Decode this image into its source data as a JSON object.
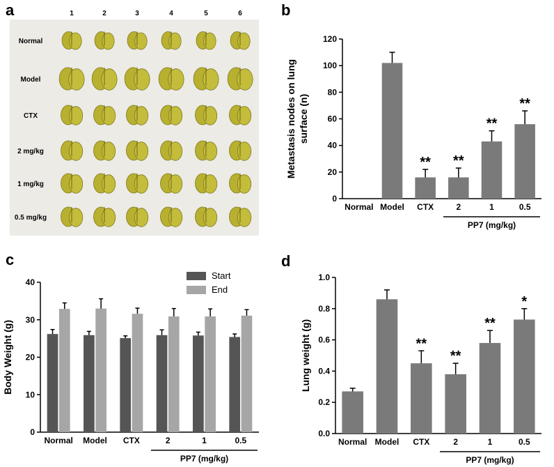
{
  "panels": {
    "a": {
      "letter": "a",
      "columns": [
        "1",
        "2",
        "3",
        "4",
        "5",
        "6"
      ],
      "rows": [
        "Normal",
        "Model",
        "CTX",
        "2 mg/kg",
        "1 mg/kg",
        "0.5 mg/kg"
      ],
      "photo_bg": "#ecebe6",
      "lung_color": "#b8b02f"
    },
    "b": {
      "letter": "b"
    },
    "c": {
      "letter": "c"
    },
    "d": {
      "letter": "d"
    }
  },
  "chart_data": [
    {
      "panel": "b",
      "type": "bar",
      "ylabel": "Metastasis nodes on lung surface (n)",
      "ylabel_lines": [
        "Metastasis nodes on lung",
        "surface (n)"
      ],
      "ylim": [
        0,
        120
      ],
      "yticks": [
        0,
        20,
        40,
        60,
        80,
        100,
        120
      ],
      "categories": [
        "Normal",
        "Model",
        "CTX",
        "2",
        "1",
        "0.5"
      ],
      "values": [
        0,
        102,
        16,
        16,
        43,
        56
      ],
      "errors": [
        0,
        8,
        6,
        7,
        8,
        10
      ],
      "significance": [
        "",
        "",
        "**",
        "**",
        "**",
        "**"
      ],
      "group_label": "PP7 (mg/kg)",
      "bar_color": "#7a7a7a"
    },
    {
      "panel": "c",
      "type": "bar",
      "ylabel": "Body Weight (g)",
      "ylim": [
        0,
        40
      ],
      "yticks": [
        0,
        10,
        20,
        30,
        40
      ],
      "categories": [
        "Normal",
        "Model",
        "CTX",
        "2",
        "1",
        "0.5"
      ],
      "series": [
        {
          "name": "Start",
          "values": [
            26.2,
            25.9,
            25.1,
            25.9,
            25.8,
            25.4
          ],
          "errors": [
            1.2,
            1.0,
            0.6,
            1.4,
            0.9,
            0.8
          ],
          "color": "#555555"
        },
        {
          "name": "End",
          "values": [
            32.9,
            33.0,
            31.6,
            30.9,
            30.9,
            31.1
          ],
          "errors": [
            1.6,
            2.6,
            1.5,
            2.1,
            2.0,
            1.6
          ],
          "color": "#a6a6a6"
        }
      ],
      "group_label": "PP7 (mg/kg)",
      "legend": "top-right"
    },
    {
      "panel": "d",
      "type": "bar",
      "ylabel": "Lung weight (g)",
      "ylim": [
        0,
        1.0
      ],
      "yticks": [
        "0.0",
        "0.2",
        "0.4",
        "0.6",
        "0.8",
        "1.0"
      ],
      "categories": [
        "Normal",
        "Model",
        "CTX",
        "2",
        "1",
        "0.5"
      ],
      "values": [
        0.27,
        0.86,
        0.45,
        0.38,
        0.58,
        0.73
      ],
      "errors": [
        0.02,
        0.06,
        0.08,
        0.07,
        0.08,
        0.07
      ],
      "significance": [
        "",
        "",
        "**",
        "**",
        "**",
        "*"
      ],
      "group_label": "PP7 (mg/kg)",
      "bar_color": "#7a7a7a"
    }
  ]
}
